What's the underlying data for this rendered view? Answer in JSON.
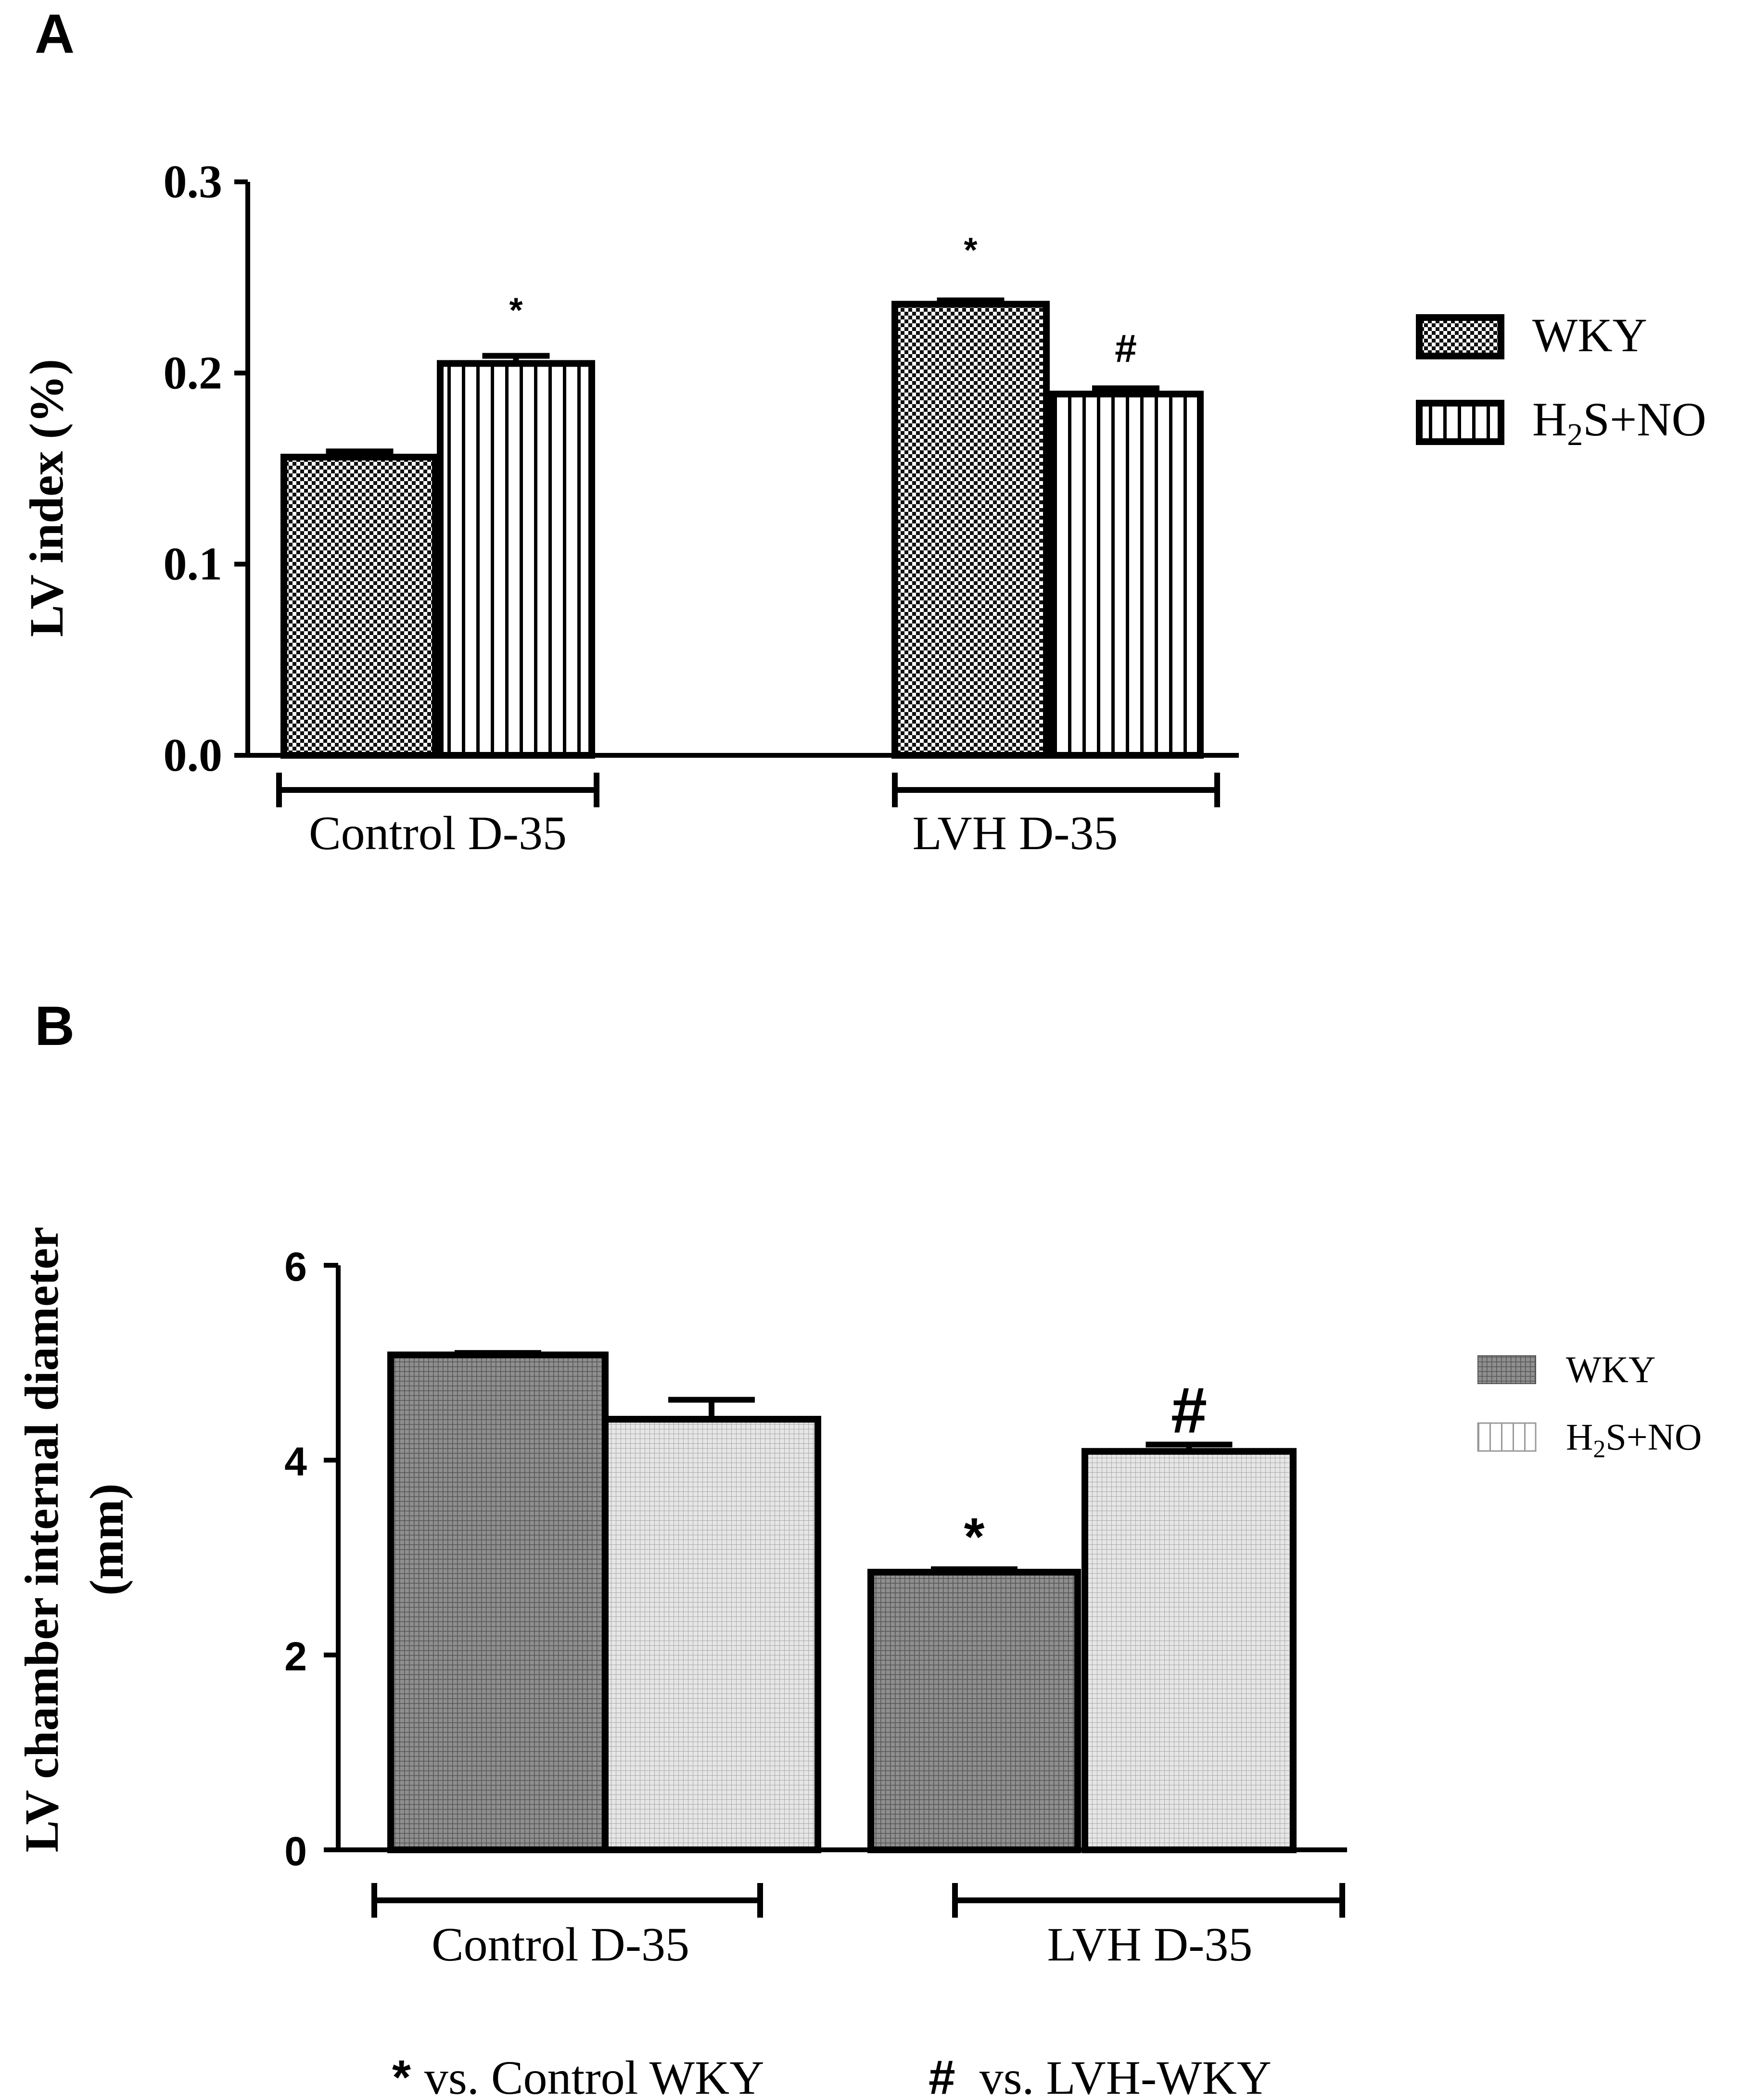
{
  "chart_data": [
    {
      "panel": "A",
      "type": "bar",
      "ylabel": "LV index (%)",
      "ylim": [
        0,
        0.3
      ],
      "yticks": [
        "0.0",
        "0.1",
        "0.2",
        "0.3"
      ],
      "groups": [
        "Control D-35",
        "LVH D-35"
      ],
      "series": [
        {
          "name": "WKY",
          "values": [
            0.156,
            0.236
          ],
          "errors": [
            0.003,
            0.002
          ]
        },
        {
          "name": "H2S+NO",
          "values": [
            0.205,
            0.189
          ],
          "errors": [
            0.004,
            0.003
          ]
        }
      ],
      "legend": [
        "WKY",
        "H2S+NO"
      ],
      "annotations": [
        {
          "series": 1,
          "group": 0,
          "text": "*"
        },
        {
          "series": 0,
          "group": 1,
          "text": "*"
        },
        {
          "series": 1,
          "group": 1,
          "text": "#"
        }
      ]
    },
    {
      "panel": "B",
      "type": "bar",
      "ylabel": [
        "LV chamber internal diameter",
        "(mm)"
      ],
      "ylim": [
        0,
        6
      ],
      "yticks": [
        "0",
        "2",
        "4",
        "6"
      ],
      "groups": [
        "Control D-35",
        "LVH D-35"
      ],
      "series": [
        {
          "name": "WKY",
          "values": [
            5.08,
            2.85
          ],
          "errors": [
            0.02,
            0.03
          ]
        },
        {
          "name": "H2S+NO",
          "values": [
            4.42,
            4.09
          ],
          "errors": [
            0.2,
            0.07
          ]
        }
      ],
      "legend": [
        "WKY",
        "H2S+NO"
      ],
      "annotations": [
        {
          "series": 0,
          "group": 1,
          "text": "*"
        },
        {
          "series": 1,
          "group": 1,
          "text": "#"
        }
      ]
    }
  ],
  "footnote": {
    "star_symbol": "*",
    "star_text": "vs. Control WKY",
    "hash_symbol": "#",
    "hash_text": "vs. LVH-WKY"
  }
}
